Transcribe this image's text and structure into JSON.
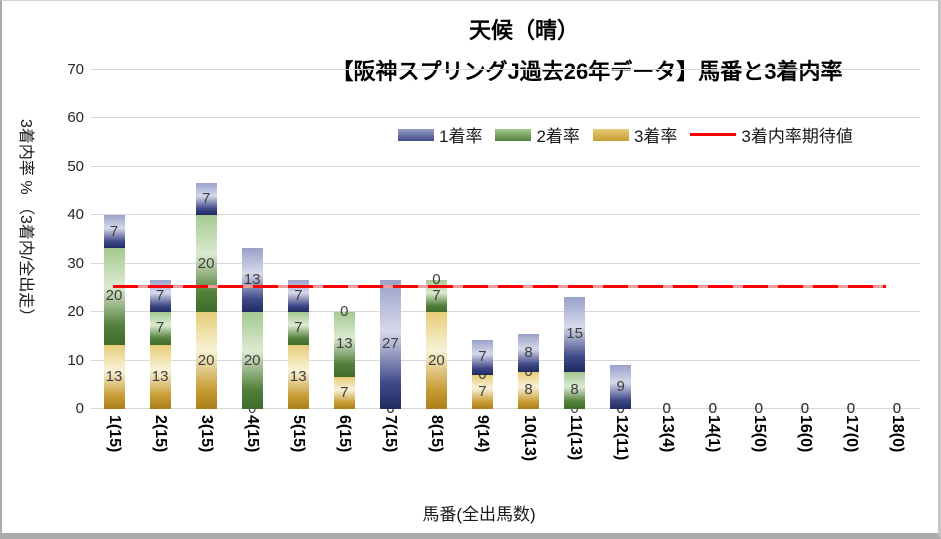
{
  "title": {
    "line1": "天候（晴）",
    "line2": "【阪神スプリングJ過去26年データ】馬番と3着内率"
  },
  "y_axis": {
    "title": "3着内率 % （3着内/全出走）",
    "ticks": [
      70,
      60,
      50,
      40,
      30,
      20,
      10,
      0
    ],
    "max": 70,
    "min": 0
  },
  "x_axis": {
    "title": "馬番(全出馬数)"
  },
  "legend": {
    "position": "top-right",
    "items": [
      {
        "label": "1着率",
        "type": "swatch"
      },
      {
        "label": "2着率",
        "type": "swatch"
      },
      {
        "label": "3着率",
        "type": "swatch"
      },
      {
        "label": "3着内率期待値",
        "type": "line"
      }
    ]
  },
  "colors": {
    "expected_line": "#ff0000",
    "gridline": "#d9d9d9",
    "label_text": "#3f3f3f"
  },
  "chart_data": {
    "type": "bar",
    "stacked": true,
    "title": "【阪神スプリングJ過去26年データ】馬番と3着内率",
    "xlabel": "馬番(全出馬数)",
    "ylabel": "3着内率 % （3着内/全出走）",
    "ylim": [
      0,
      70
    ],
    "grid": true,
    "legend_position": "top-right",
    "categories": [
      "1(15)",
      "2(15)",
      "3(15)",
      "4(15)",
      "5(15)",
      "6(15)",
      "7(15)",
      "8(15)",
      "9(14)",
      "10(13)",
      "11(13)",
      "12(11)",
      "13(4)",
      "14(1)",
      "15(0)",
      "16(0)",
      "17(0)",
      "18(0)"
    ],
    "stack_order_bottom_to_top": [
      "3着率",
      "2着率",
      "1着率"
    ],
    "series": [
      {
        "name": "1着率",
        "values": [
          6.7,
          6.7,
          6.7,
          13.3,
          6.7,
          0,
          26.7,
          0,
          7.1,
          7.7,
          15.4,
          9.1,
          0,
          0,
          0,
          0,
          0,
          0
        ],
        "labels": [
          "7",
          "7",
          "7",
          "13",
          "7",
          "0",
          "27",
          "0",
          "7",
          "8",
          "15",
          "9",
          "0",
          "0",
          "0",
          "0",
          "0",
          "0"
        ],
        "gradient": [
          "#99a1c9",
          "#d7d9ea",
          "#3f4989",
          "#1f2b5e"
        ]
      },
      {
        "name": "2着率",
        "values": [
          20,
          6.7,
          20,
          20,
          6.7,
          13.3,
          0,
          6.7,
          0,
          0,
          7.7,
          0,
          0,
          0,
          0,
          0,
          0,
          0
        ],
        "labels": [
          "20",
          "7",
          "20",
          "20",
          "7",
          "13",
          "0",
          "7",
          "0",
          "0",
          "8",
          "0",
          "0",
          "0",
          "0",
          "0",
          "0",
          "0"
        ],
        "gradient": [
          "#a4c98f",
          "#dcead2",
          "#53803a",
          "#406b2c"
        ]
      },
      {
        "name": "3着率",
        "values": [
          13.3,
          13.3,
          20,
          0,
          13.3,
          6.7,
          0,
          20,
          7.1,
          7.7,
          0,
          0,
          0,
          0,
          0,
          0,
          0,
          0
        ],
        "labels": [
          "13",
          "13",
          "20",
          "0",
          "13",
          "7",
          "0",
          "20",
          "7",
          "8",
          "0",
          "0",
          "0",
          "0",
          "0",
          "0",
          "0",
          "0"
        ],
        "gradient": [
          "#e7cd78",
          "#f8f2d8",
          "#c79c33",
          "#ab801c"
        ]
      }
    ],
    "expected_line": {
      "name": "3着内率期待値",
      "value": 25.4,
      "color": "#ff0000"
    }
  }
}
